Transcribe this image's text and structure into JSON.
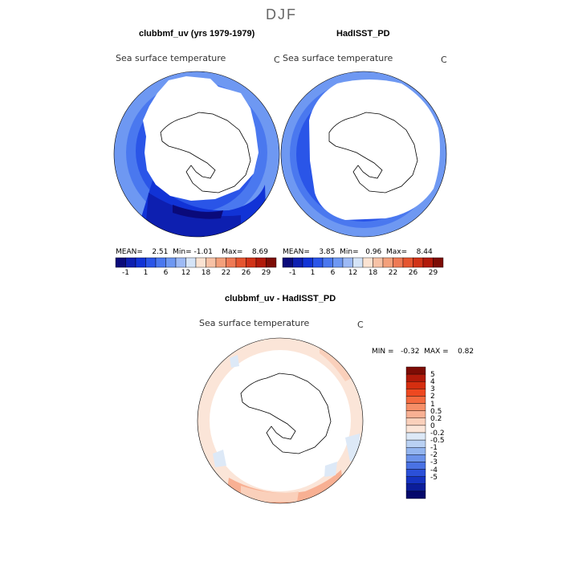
{
  "page": {
    "season": "DJF"
  },
  "panels": {
    "left": {
      "title": "clubbmf_uv (yrs 1979-1979)",
      "variable": "Sea surface temperature",
      "units": "C",
      "stats": {
        "mean_label": "MEAN=",
        "mean": "2.51",
        "min_label": "Min=",
        "min": "-1.01",
        "max_label": "Max=",
        "max": "8.69"
      }
    },
    "right": {
      "title": "HadISST_PD",
      "variable": "Sea surface temperature",
      "units": "C",
      "stats": {
        "mean_label": "MEAN=",
        "mean": "3.85",
        "min_label": "Min=",
        "min": "0.96",
        "max_label": "Max=",
        "max": "8.44"
      }
    },
    "diff": {
      "title": "clubbmf_uv - HadISST_PD",
      "variable": "Sea surface temperature",
      "units": "C",
      "stats_text": "MIN =   -0.32  MAX =    0.82"
    }
  },
  "colorbar_abs": {
    "colors": [
      "#0a0a7a",
      "#0d1fb0",
      "#1133d6",
      "#2a55e8",
      "#4a78ef",
      "#6e98f2",
      "#9dbaf5",
      "#d5e4f7",
      "#fbe3d2",
      "#f7c2a6",
      "#f3a07b",
      "#ee7a55",
      "#e55530",
      "#d13318",
      "#b11a0a",
      "#7d0c05"
    ],
    "tick_labels": [
      "-1",
      "1",
      "6",
      "12",
      "18",
      "22",
      "26",
      "29"
    ]
  },
  "colorbar_diff": {
    "colors": [
      "#7d0c05",
      "#b11a0a",
      "#d52e10",
      "#ee4820",
      "#f46a3f",
      "#f68f68",
      "#f8b093",
      "#fad0bb",
      "#fbe5d8",
      "#dde9f7",
      "#b9d1f3",
      "#93b5ef",
      "#6c93ea",
      "#4a72e4",
      "#2b50d9",
      "#1533c1",
      "#0b1d9a",
      "#05096b"
    ],
    "tick_labels": [
      "5",
      "4",
      "3",
      "2",
      "1",
      "0.5",
      "0.2",
      "0",
      "-0.2",
      "-0.5",
      "-1",
      "-2",
      "-3",
      "-4",
      "-5"
    ]
  }
}
